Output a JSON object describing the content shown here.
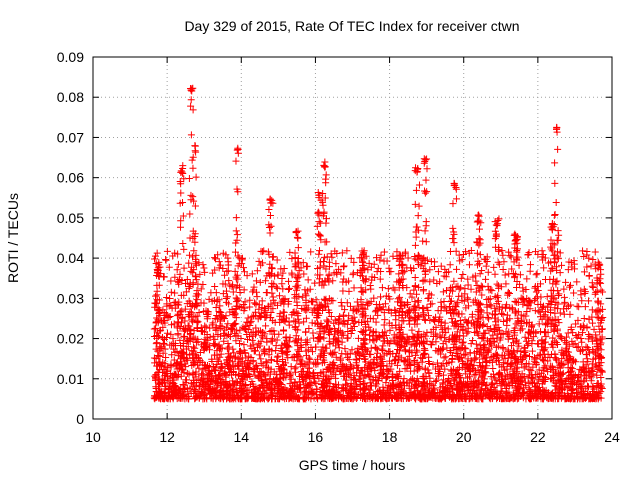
{
  "chart_data": {
    "type": "scatter",
    "title": "Day 329 of 2015, Rate Of TEC Index for receiver ctwn",
    "xlabel": "GPS time / hours",
    "ylabel": "ROTI / TECUs",
    "xlim": [
      10,
      24
    ],
    "ylim": [
      0,
      0.09
    ],
    "xticks": [
      "10",
      "12",
      "14",
      "16",
      "18",
      "20",
      "22",
      "24"
    ],
    "yticks": [
      "0",
      "0.01",
      "0.02",
      "0.03",
      "0.04",
      "0.05",
      "0.06",
      "0.07",
      "0.08",
      "0.09"
    ],
    "grid": true,
    "marker": "plus",
    "color": "#ff0000",
    "series": [
      {
        "name": "ROTI",
        "data_span_hours": [
          11.65,
          23.75
        ],
        "typical_range": [
          0.005,
          0.03
        ],
        "peaks": [
          {
            "x": 11.75,
            "y": 0.038
          },
          {
            "x": 12.4,
            "y": 0.063
          },
          {
            "x": 12.65,
            "y": 0.083
          },
          {
            "x": 12.75,
            "y": 0.068
          },
          {
            "x": 13.9,
            "y": 0.068
          },
          {
            "x": 14.8,
            "y": 0.055
          },
          {
            "x": 15.5,
            "y": 0.047
          },
          {
            "x": 16.1,
            "y": 0.057
          },
          {
            "x": 16.25,
            "y": 0.064
          },
          {
            "x": 17.3,
            "y": 0.042
          },
          {
            "x": 18.3,
            "y": 0.041
          },
          {
            "x": 18.75,
            "y": 0.063
          },
          {
            "x": 18.95,
            "y": 0.065
          },
          {
            "x": 19.75,
            "y": 0.059
          },
          {
            "x": 20.4,
            "y": 0.051
          },
          {
            "x": 20.9,
            "y": 0.05
          },
          {
            "x": 21.4,
            "y": 0.046
          },
          {
            "x": 22.4,
            "y": 0.049
          },
          {
            "x": 22.5,
            "y": 0.073
          },
          {
            "x": 23.65,
            "y": 0.039
          }
        ]
      }
    ]
  }
}
